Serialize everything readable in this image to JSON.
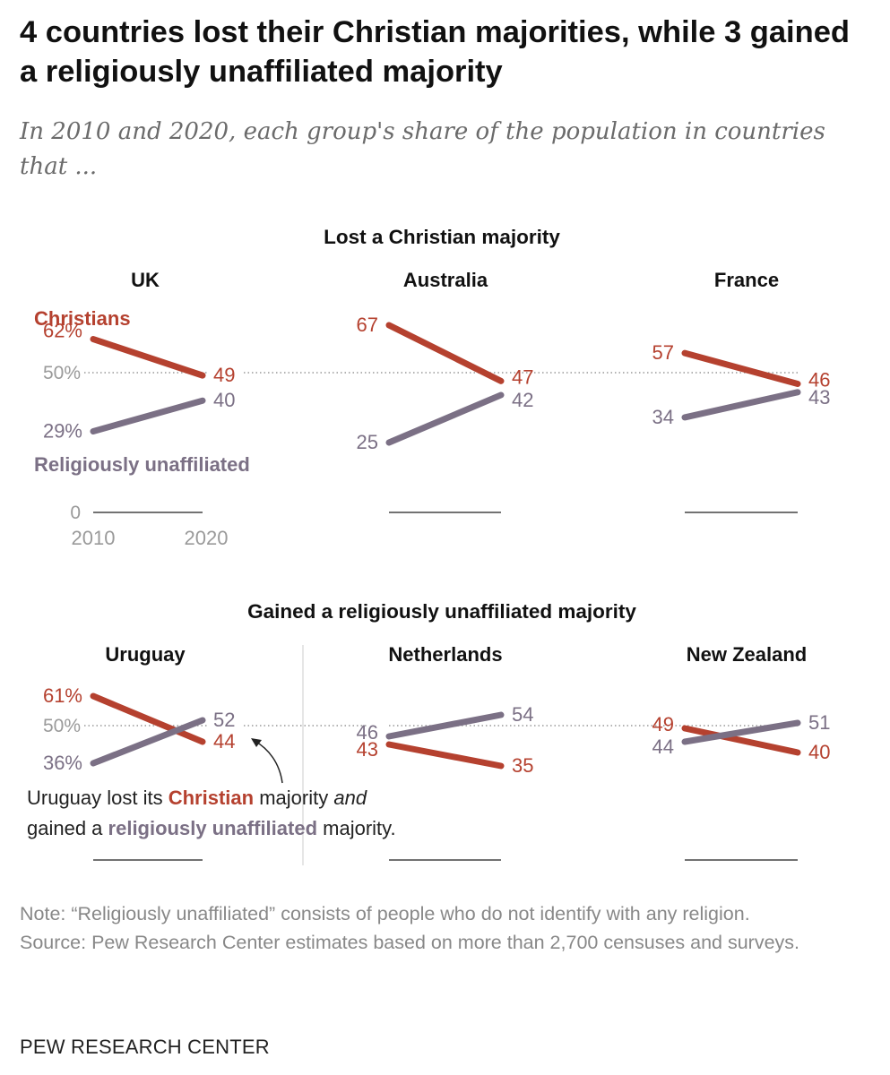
{
  "title": "4 countries lost their Christian majorities, while 3 gained a religiously unaffiliated majority",
  "subtitle": "In 2010 and 2020, each group's share of the population in countries that ...",
  "colors": {
    "christians": "#b5412f",
    "unaffiliated": "#7b7085",
    "axis": "#999999",
    "text": "#111111"
  },
  "chart_data": {
    "type": "line",
    "x": [
      "2010",
      "2020"
    ],
    "ylim": [
      0,
      100
    ],
    "reference_line": {
      "value": 50,
      "label": "50%"
    },
    "zero_label": "0",
    "legend": {
      "christians": "Christians",
      "unaffiliated": "Religiously unaffiliated"
    },
    "groups": [
      {
        "heading": "Lost a Christian majority",
        "panels": [
          {
            "country": "UK",
            "series": [
              {
                "name": "Christians",
                "values": [
                  62,
                  49
                ],
                "labels": [
                  "62%",
                  "49"
                ]
              },
              {
                "name": "Religiously unaffiliated",
                "values": [
                  29,
                  40
                ],
                "labels": [
                  "29%",
                  "40"
                ]
              }
            ]
          },
          {
            "country": "Australia",
            "series": [
              {
                "name": "Christians",
                "values": [
                  67,
                  47
                ],
                "labels": [
                  "67",
                  "47"
                ]
              },
              {
                "name": "Religiously unaffiliated",
                "values": [
                  25,
                  42
                ],
                "labels": [
                  "25",
                  "42"
                ]
              }
            ]
          },
          {
            "country": "France",
            "series": [
              {
                "name": "Christians",
                "values": [
                  57,
                  46
                ],
                "labels": [
                  "57",
                  "46"
                ]
              },
              {
                "name": "Religiously unaffiliated",
                "values": [
                  34,
                  43
                ],
                "labels": [
                  "34",
                  "43"
                ]
              }
            ]
          }
        ]
      },
      {
        "heading": "Gained a religiously unaffiliated majority",
        "panels": [
          {
            "country": "Uruguay",
            "series": [
              {
                "name": "Christians",
                "values": [
                  61,
                  44
                ],
                "labels": [
                  "61%",
                  "44"
                ]
              },
              {
                "name": "Religiously unaffiliated",
                "values": [
                  36,
                  52
                ],
                "labels": [
                  "36%",
                  "52"
                ]
              }
            ]
          },
          {
            "country": "Netherlands",
            "series": [
              {
                "name": "Christians",
                "values": [
                  43,
                  35
                ],
                "labels": [
                  "43",
                  "35"
                ]
              },
              {
                "name": "Religiously unaffiliated",
                "values": [
                  46,
                  54
                ],
                "labels": [
                  "46",
                  "54"
                ]
              }
            ]
          },
          {
            "country": "New Zealand",
            "series": [
              {
                "name": "Christians",
                "values": [
                  49,
                  40
                ],
                "labels": [
                  "49",
                  "40"
                ]
              },
              {
                "name": "Religiously unaffiliated",
                "values": [
                  44,
                  51
                ],
                "labels": [
                  "44",
                  "51"
                ]
              }
            ]
          }
        ]
      }
    ],
    "annotation": {
      "line1_pre": "Uruguay lost its ",
      "line1_em": "Christian",
      "line1_mid": " majority ",
      "line1_it": "and",
      "line2_pre": "gained a ",
      "line2_em": "religiously unaffiliated",
      "line2_post": " majority."
    }
  },
  "notes": {
    "note": "Note: “Religiously unaffiliated” consists of people who do not identify with any religion.",
    "source": "Source: Pew Research Center estimates based on more than 2,700 censuses and surveys."
  },
  "footer": {
    "org": "PEW RESEARCH CENTER"
  }
}
